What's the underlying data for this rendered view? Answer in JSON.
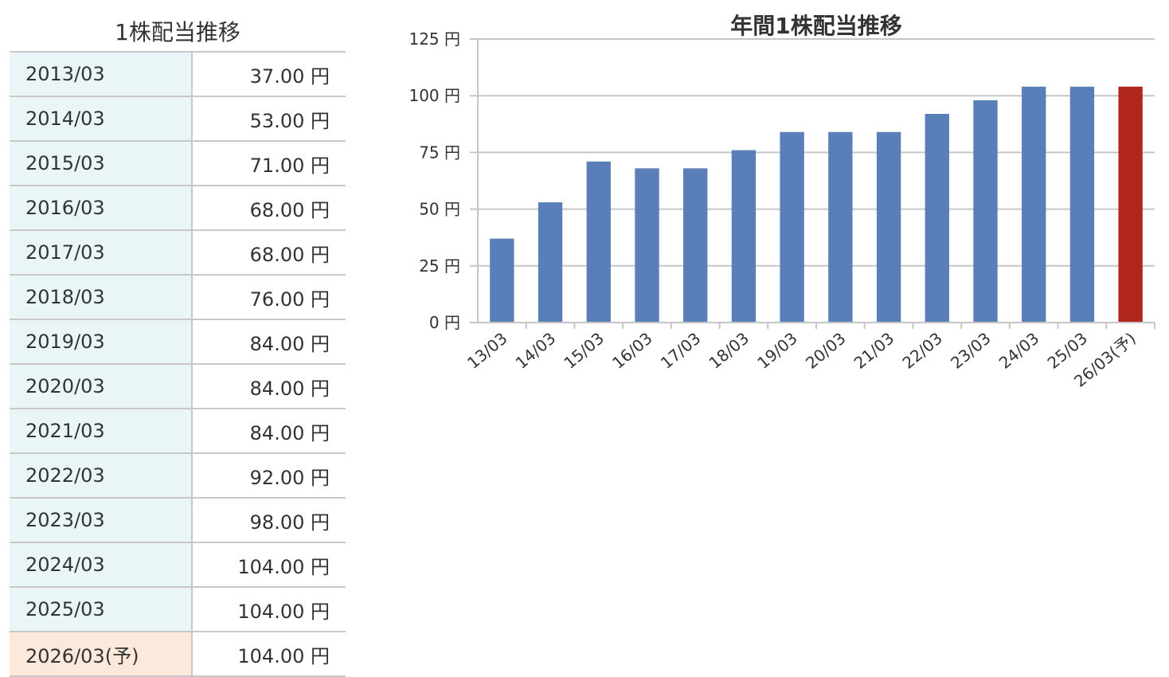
{
  "table": {
    "title": "1株配当推移",
    "rows": [
      {
        "period": "2013/03",
        "value": "37.00 円"
      },
      {
        "period": "2014/03",
        "value": "53.00 円"
      },
      {
        "period": "2015/03",
        "value": "71.00 円"
      },
      {
        "period": "2016/03",
        "value": "68.00 円"
      },
      {
        "period": "2017/03",
        "value": "68.00 円"
      },
      {
        "period": "2018/03",
        "value": "76.00 円"
      },
      {
        "period": "2019/03",
        "value": "84.00 円"
      },
      {
        "period": "2020/03",
        "value": "84.00 円"
      },
      {
        "period": "2021/03",
        "value": "84.00 円"
      },
      {
        "period": "2022/03",
        "value": "92.00 円"
      },
      {
        "period": "2023/03",
        "value": "98.00 円"
      },
      {
        "period": "2024/03",
        "value": "104.00 円"
      },
      {
        "period": "2025/03",
        "value": "104.00 円"
      },
      {
        "period": "2026/03(予)",
        "value": "104.00 円",
        "forecast": true
      }
    ]
  },
  "chart_data": {
    "type": "bar",
    "title": "年間1株配当推移",
    "categories": [
      "13/03",
      "14/03",
      "15/03",
      "16/03",
      "17/03",
      "18/03",
      "19/03",
      "20/03",
      "21/03",
      "22/03",
      "23/03",
      "24/03",
      "25/03",
      "26/03(予)"
    ],
    "values": [
      37,
      53,
      71,
      68,
      68,
      76,
      84,
      84,
      84,
      92,
      98,
      104,
      104,
      104
    ],
    "ylim": [
      0,
      125
    ],
    "yticks": [
      0,
      25,
      50,
      75,
      100,
      125
    ],
    "ytick_labels": [
      "0 円",
      "25 円",
      "50 円",
      "75 円",
      "100 円",
      "125 円"
    ],
    "grid": true,
    "colors": {
      "actual": "#5a7fb8",
      "forecast": "#b0251c"
    }
  }
}
